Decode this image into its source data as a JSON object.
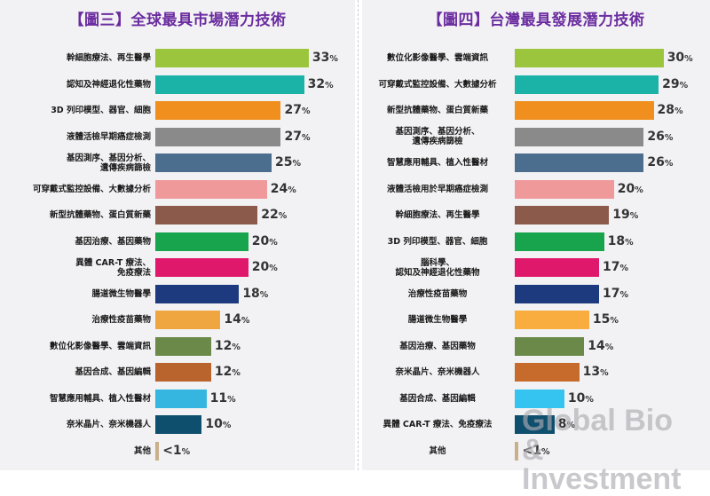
{
  "chart_data": [
    {
      "type": "bar",
      "orientation": "horizontal",
      "title": "【圖三】全球最具市場潛力技術",
      "xlim": [
        0,
        35
      ],
      "categories": [
        "幹細胞療法、再生醫學",
        "認知及神經退化性藥物",
        "3D 列印模型、器官、細胞",
        "液體活檢早期癌症檢測",
        "基因測序、基因分析、\n遺傳疾病篩檢",
        "可穿戴式監控設備、大數據分析",
        "新型抗體藥物、蛋白質新藥",
        "基因治療、基因藥物",
        "異體 CAR-T 療法、\n免疫療法",
        "腸道微生物醫學",
        "治療性疫苗藥物",
        "數位化影像醫學、雲端資訊",
        "基因合成、基因編輯",
        "智慧應用輔具、植入性醫材",
        "奈米晶片、奈米機器人",
        "其他"
      ],
      "values": [
        33,
        32,
        27,
        27,
        25,
        24,
        22,
        20,
        20,
        18,
        14,
        12,
        12,
        11,
        10,
        0.8
      ],
      "value_labels": [
        "33",
        "32",
        "27",
        "27",
        "25",
        "24",
        "22",
        "20",
        "20",
        "18",
        "14",
        "12",
        "12",
        "11",
        "10",
        "<1"
      ],
      "unit": "%",
      "colors": [
        "#9bc53d",
        "#1bb3a7",
        "#f08f1e",
        "#8a8a8a",
        "#4b6e8f",
        "#f0999b",
        "#8b5a4a",
        "#18a34d",
        "#e0186b",
        "#1d3a7e",
        "#f0a640",
        "#6b8a4a",
        "#b8642c",
        "#35b6e0",
        "#0f4f6e",
        "#c9b08a"
      ],
      "grid": false,
      "legend": "none"
    },
    {
      "type": "bar",
      "orientation": "horizontal",
      "title": "【圖四】台灣最具發展潛力技術",
      "xlim": [
        0,
        32
      ],
      "categories": [
        "數位化影像醫學、雲端資訊",
        "可穿戴式監控設備、大數據分析",
        "新型抗體藥物、蛋白質新藥",
        "基因測序、基因分析、\n遺傳疾病篩檢",
        "智慧應用輔具、植入性醫材",
        "液體活檢用於早期癌症檢測",
        "幹細胞療法、再生醫學",
        "3D 列印模型、器官、細胞",
        "腦科學、\n認知及神經退化性藥物",
        "治療性疫苗藥物",
        "腸道微生物醫學",
        "基因治療、基因藥物",
        "奈米晶片、奈米機器人",
        "基因合成、基因編輯",
        "異體 CAR-T 療法、免疫療法",
        "其他"
      ],
      "values": [
        30,
        29,
        28,
        26,
        26,
        20,
        19,
        18,
        17,
        17,
        15,
        14,
        13,
        10,
        8,
        0.8
      ],
      "value_labels": [
        "30",
        "29",
        "28",
        "26",
        "26",
        "20",
        "19",
        "18",
        "17",
        "17",
        "15",
        "14",
        "13",
        "10",
        "8",
        "<1"
      ],
      "unit": "%",
      "colors": [
        "#9bc53d",
        "#1bb3a7",
        "#f08f1e",
        "#8a8a8a",
        "#4b6e8f",
        "#f0999b",
        "#8b5a4a",
        "#18a34d",
        "#e0186b",
        "#1d3a7e",
        "#f8ad3e",
        "#6b8a4a",
        "#c76b2c",
        "#35c3f0",
        "#0f4f6e",
        "#c9b08a"
      ],
      "grid": false,
      "legend": "none"
    }
  ],
  "watermark": {
    "line1": "Global Bio",
    "line2": "& Investment"
  }
}
